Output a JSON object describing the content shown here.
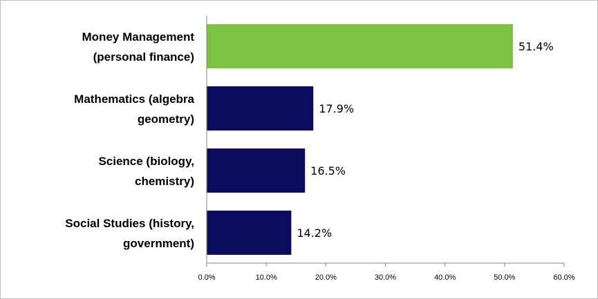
{
  "chart_data": {
    "type": "bar",
    "orientation": "horizontal",
    "categories": [
      [
        "Money Management",
        "(personal finance)"
      ],
      [
        "Mathematics  (algebra",
        "geometry)"
      ],
      [
        "Science (biology,",
        "chemistry)"
      ],
      [
        "Social Studies (history,",
        "government)"
      ]
    ],
    "values": [
      51.4,
      17.9,
      16.5,
      14.2
    ],
    "value_labels": [
      "51.4%",
      "17.9%",
      "16.5%",
      "14.2%"
    ],
    "bar_colors": [
      "#7dc242",
      "#0c0c5c",
      "#0c0c5c",
      "#0c0c5c"
    ],
    "xlim": [
      0,
      60
    ],
    "x_ticks": [
      0,
      10,
      20,
      30,
      40,
      50,
      60
    ],
    "x_tick_labels": [
      "0.0%",
      "10.0%",
      "20.0%",
      "30.0%",
      "40.0%",
      "50.0%",
      "60.0%"
    ],
    "title": "",
    "xlabel": "",
    "ylabel": "",
    "grid": false,
    "legend": "none"
  }
}
